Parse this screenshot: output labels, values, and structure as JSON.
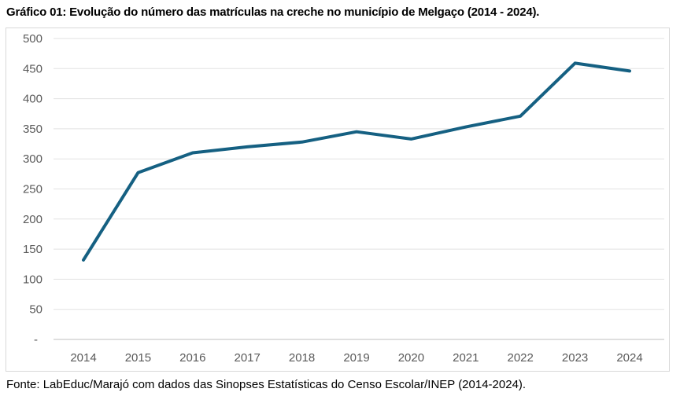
{
  "title": "Gráfico 01: Evolução do número das matrículas na creche no município de Melgaço (2014 - 2024).",
  "footer": "Fonte: LabEduc/Marajó com dados das Sinopses Estatísticas do Censo Escolar/INEP (2014-2024).",
  "chart_data": {
    "type": "line",
    "categories": [
      "2014",
      "2015",
      "2016",
      "2017",
      "2018",
      "2019",
      "2020",
      "2021",
      "2022",
      "2023",
      "2024"
    ],
    "values": [
      132,
      277,
      310,
      320,
      328,
      345,
      333,
      353,
      371,
      459,
      446
    ],
    "title": "",
    "xlabel": "",
    "ylabel": "",
    "ylim": [
      0,
      500
    ],
    "ytick_step": 50,
    "ytick_labels": [
      "-",
      "50",
      "100",
      "150",
      "200",
      "250",
      "300",
      "350",
      "400",
      "450",
      "500"
    ],
    "grid": true,
    "legend": "none",
    "line_color": "#156082",
    "gridline_color": "#e2e2e2",
    "axis_line_color": "#bfbfbf",
    "tick_label_color": "#595959"
  }
}
